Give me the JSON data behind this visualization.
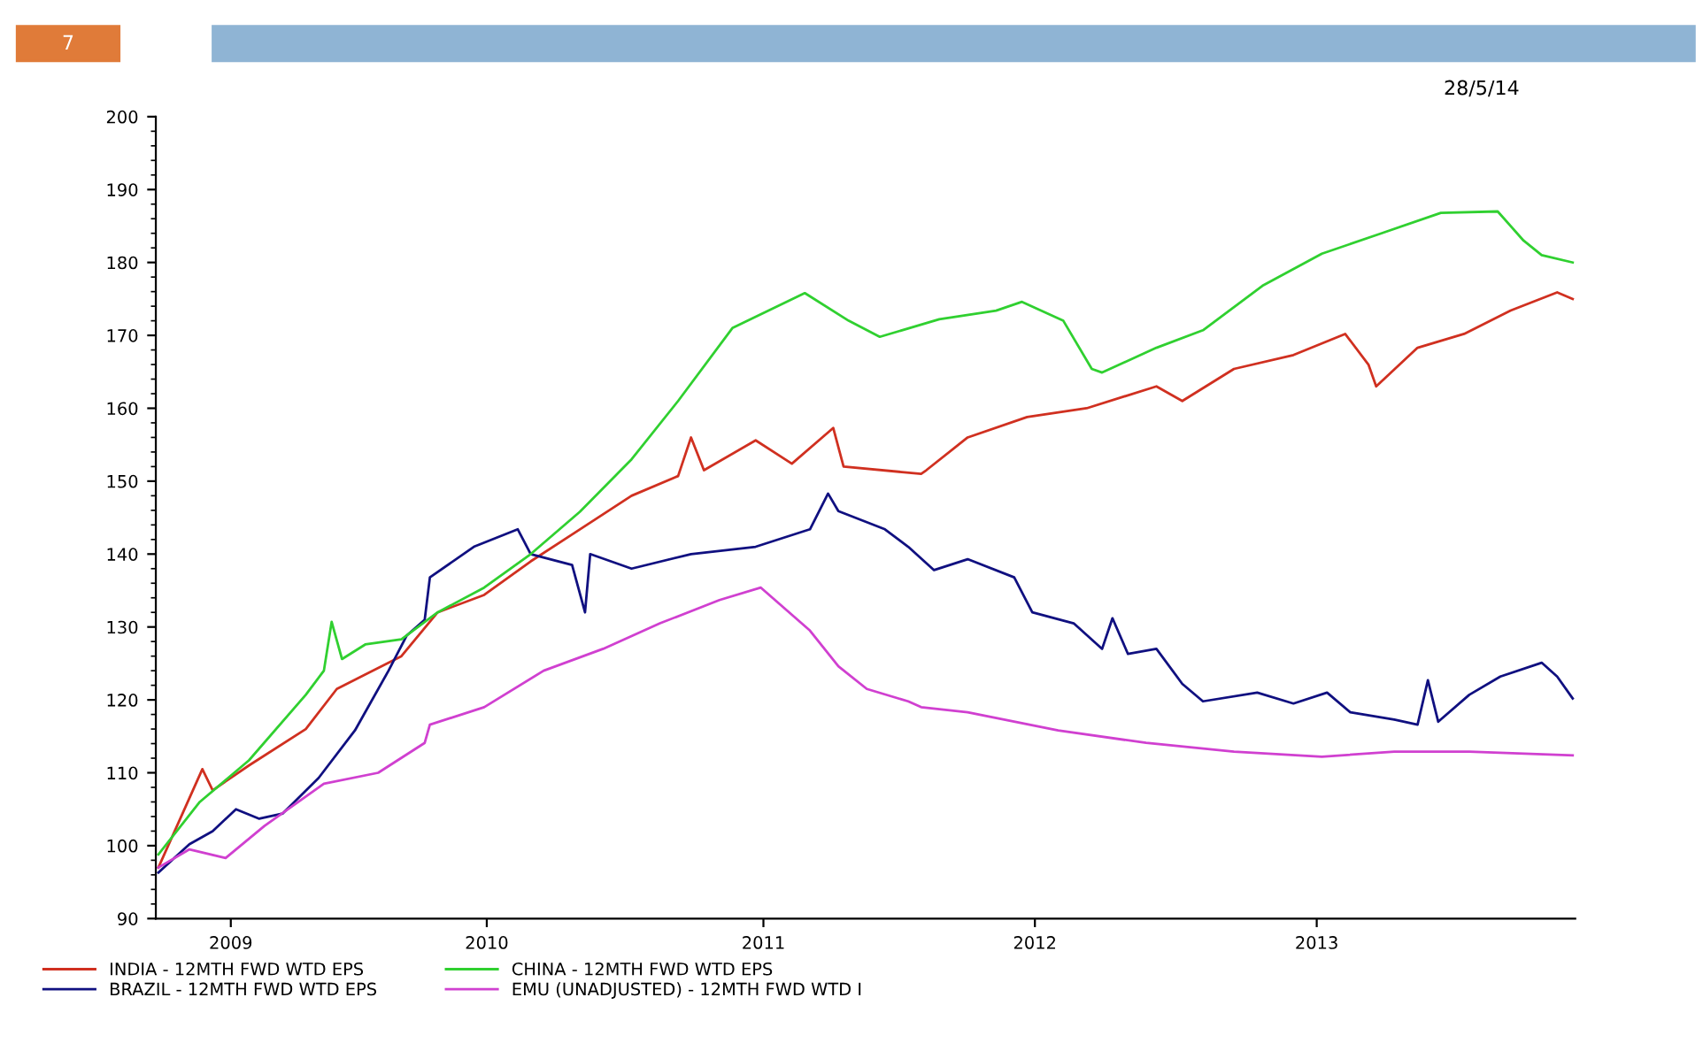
{
  "chart_data": {
    "type": "line",
    "annotations": [
      "7",
      "28/5/14"
    ],
    "xlim": [
      2008.95,
      2014.44
    ],
    "xticks": [
      {
        "value": 2009.24,
        "label": "2009"
      },
      {
        "value": 2010.23,
        "label": "2010"
      },
      {
        "value": 2011.3,
        "label": "2011"
      },
      {
        "value": 2012.35,
        "label": "2012"
      },
      {
        "value": 2013.44,
        "label": "2013"
      }
    ],
    "ylim": [
      90,
      200
    ],
    "yticks": [
      90,
      100,
      110,
      120,
      130,
      140,
      150,
      160,
      170,
      180,
      190,
      200
    ],
    "grid": false,
    "legend": "bottom",
    "marker": "none",
    "line_style": "solid",
    "series": [
      {
        "name": "INDIA - 12MTH FWD WTD EPS",
        "color": "#d03020",
        "x": [
          2008.96,
          2009.13,
          2009.17,
          2009.31,
          2009.53,
          2009.65,
          2009.9,
          2010.04,
          2010.22,
          2010.4,
          2010.56,
          2010.79,
          2010.97,
          2011.02,
          2011.07,
          2011.27,
          2011.41,
          2011.57,
          2011.61,
          2011.91,
          2011.93,
          2012.09,
          2012.32,
          2012.55,
          2012.82,
          2012.92,
          2013.12,
          2013.35,
          2013.55,
          2013.64,
          2013.67,
          2013.83,
          2014.01,
          2014.19,
          2014.37,
          2014.43
        ],
        "values": [
          97,
          110.5,
          107.6,
          111,
          116,
          121.5,
          126,
          132,
          134.4,
          139,
          142.7,
          148,
          150.7,
          156,
          151.5,
          155.6,
          152.4,
          157.3,
          152,
          151,
          151.5,
          156,
          158.8,
          160,
          163,
          161,
          165.4,
          167.3,
          170.2,
          166,
          163,
          168.3,
          170.2,
          173.4,
          175.9,
          175
        ]
      },
      {
        "name": "BRAZIL - 12MTH FWD WTD EPS",
        "color": "#101080",
        "x": [
          2008.96,
          2009.08,
          2009.17,
          2009.26,
          2009.35,
          2009.44,
          2009.58,
          2009.72,
          2009.85,
          2009.92,
          2009.99,
          2010.01,
          2010.18,
          2010.35,
          2010.4,
          2010.56,
          2010.61,
          2010.63,
          2010.79,
          2011.02,
          2011.27,
          2011.48,
          2011.55,
          2011.59,
          2011.77,
          2011.86,
          2011.96,
          2012.09,
          2012.27,
          2012.34,
          2012.5,
          2012.61,
          2012.65,
          2012.71,
          2012.82,
          2012.92,
          2013.0,
          2013.21,
          2013.35,
          2013.48,
          2013.57,
          2013.74,
          2013.83,
          2013.87,
          2013.91,
          2014.03,
          2014.15,
          2014.31,
          2014.37,
          2014.43
        ],
        "values": [
          96.3,
          100.2,
          102,
          105,
          103.7,
          104.4,
          109.3,
          115.8,
          124,
          128.8,
          131,
          136.8,
          141,
          143.4,
          140,
          138.5,
          132,
          140,
          138,
          140,
          141,
          143.4,
          148.3,
          145.9,
          143.4,
          141,
          137.8,
          139.3,
          136.8,
          132,
          130.5,
          127,
          131.2,
          126.3,
          127,
          122.2,
          119.8,
          121,
          119.5,
          121,
          118.3,
          117.3,
          116.6,
          122.7,
          117,
          120.7,
          123.2,
          125.1,
          123.2,
          120.2
        ]
      },
      {
        "name": "CHINA - 12MTH FWD WTD EPS",
        "color": "#30d030",
        "x": [
          2008.96,
          2009.12,
          2009.31,
          2009.53,
          2009.6,
          2009.63,
          2009.67,
          2009.76,
          2009.9,
          2010.04,
          2010.22,
          2010.4,
          2010.59,
          2010.79,
          2010.97,
          2011.18,
          2011.46,
          2011.63,
          2011.75,
          2011.98,
          2012.2,
          2012.3,
          2012.46,
          2012.57,
          2012.61,
          2012.82,
          2013.0,
          2013.23,
          2013.46,
          2013.69,
          2013.92,
          2014.14,
          2014.24,
          2014.31,
          2014.43
        ],
        "values": [
          98.8,
          106,
          111.7,
          120.7,
          124,
          130.7,
          125.6,
          127.6,
          128.3,
          132,
          135.4,
          140,
          145.8,
          153,
          161,
          171,
          175.8,
          172,
          169.8,
          172.2,
          173.4,
          174.6,
          172,
          165.4,
          164.9,
          168.3,
          170.7,
          176.8,
          181.2,
          184,
          186.8,
          187,
          183,
          181,
          180
        ]
      },
      {
        "name": "EMU (UNADJUSTED) - 12MTH FWD WTD I",
        "color": "#d040d0",
        "x": [
          2008.96,
          2009.08,
          2009.22,
          2009.37,
          2009.6,
          2009.81,
          2009.99,
          2010.01,
          2010.22,
          2010.45,
          2010.68,
          2010.9,
          2011.13,
          2011.29,
          2011.48,
          2011.59,
          2011.7,
          2011.86,
          2011.91,
          2012.09,
          2012.44,
          2012.78,
          2013.12,
          2013.46,
          2013.74,
          2014.03,
          2014.43
        ],
        "values": [
          97,
          99.5,
          98.3,
          102.7,
          108.5,
          110,
          114.1,
          116.6,
          119,
          124,
          127,
          130.5,
          133.7,
          135.4,
          129.5,
          124.6,
          121.5,
          119.8,
          119,
          118.3,
          115.8,
          114.1,
          112.9,
          112.2,
          112.9,
          112.9,
          112.4
        ]
      }
    ]
  }
}
